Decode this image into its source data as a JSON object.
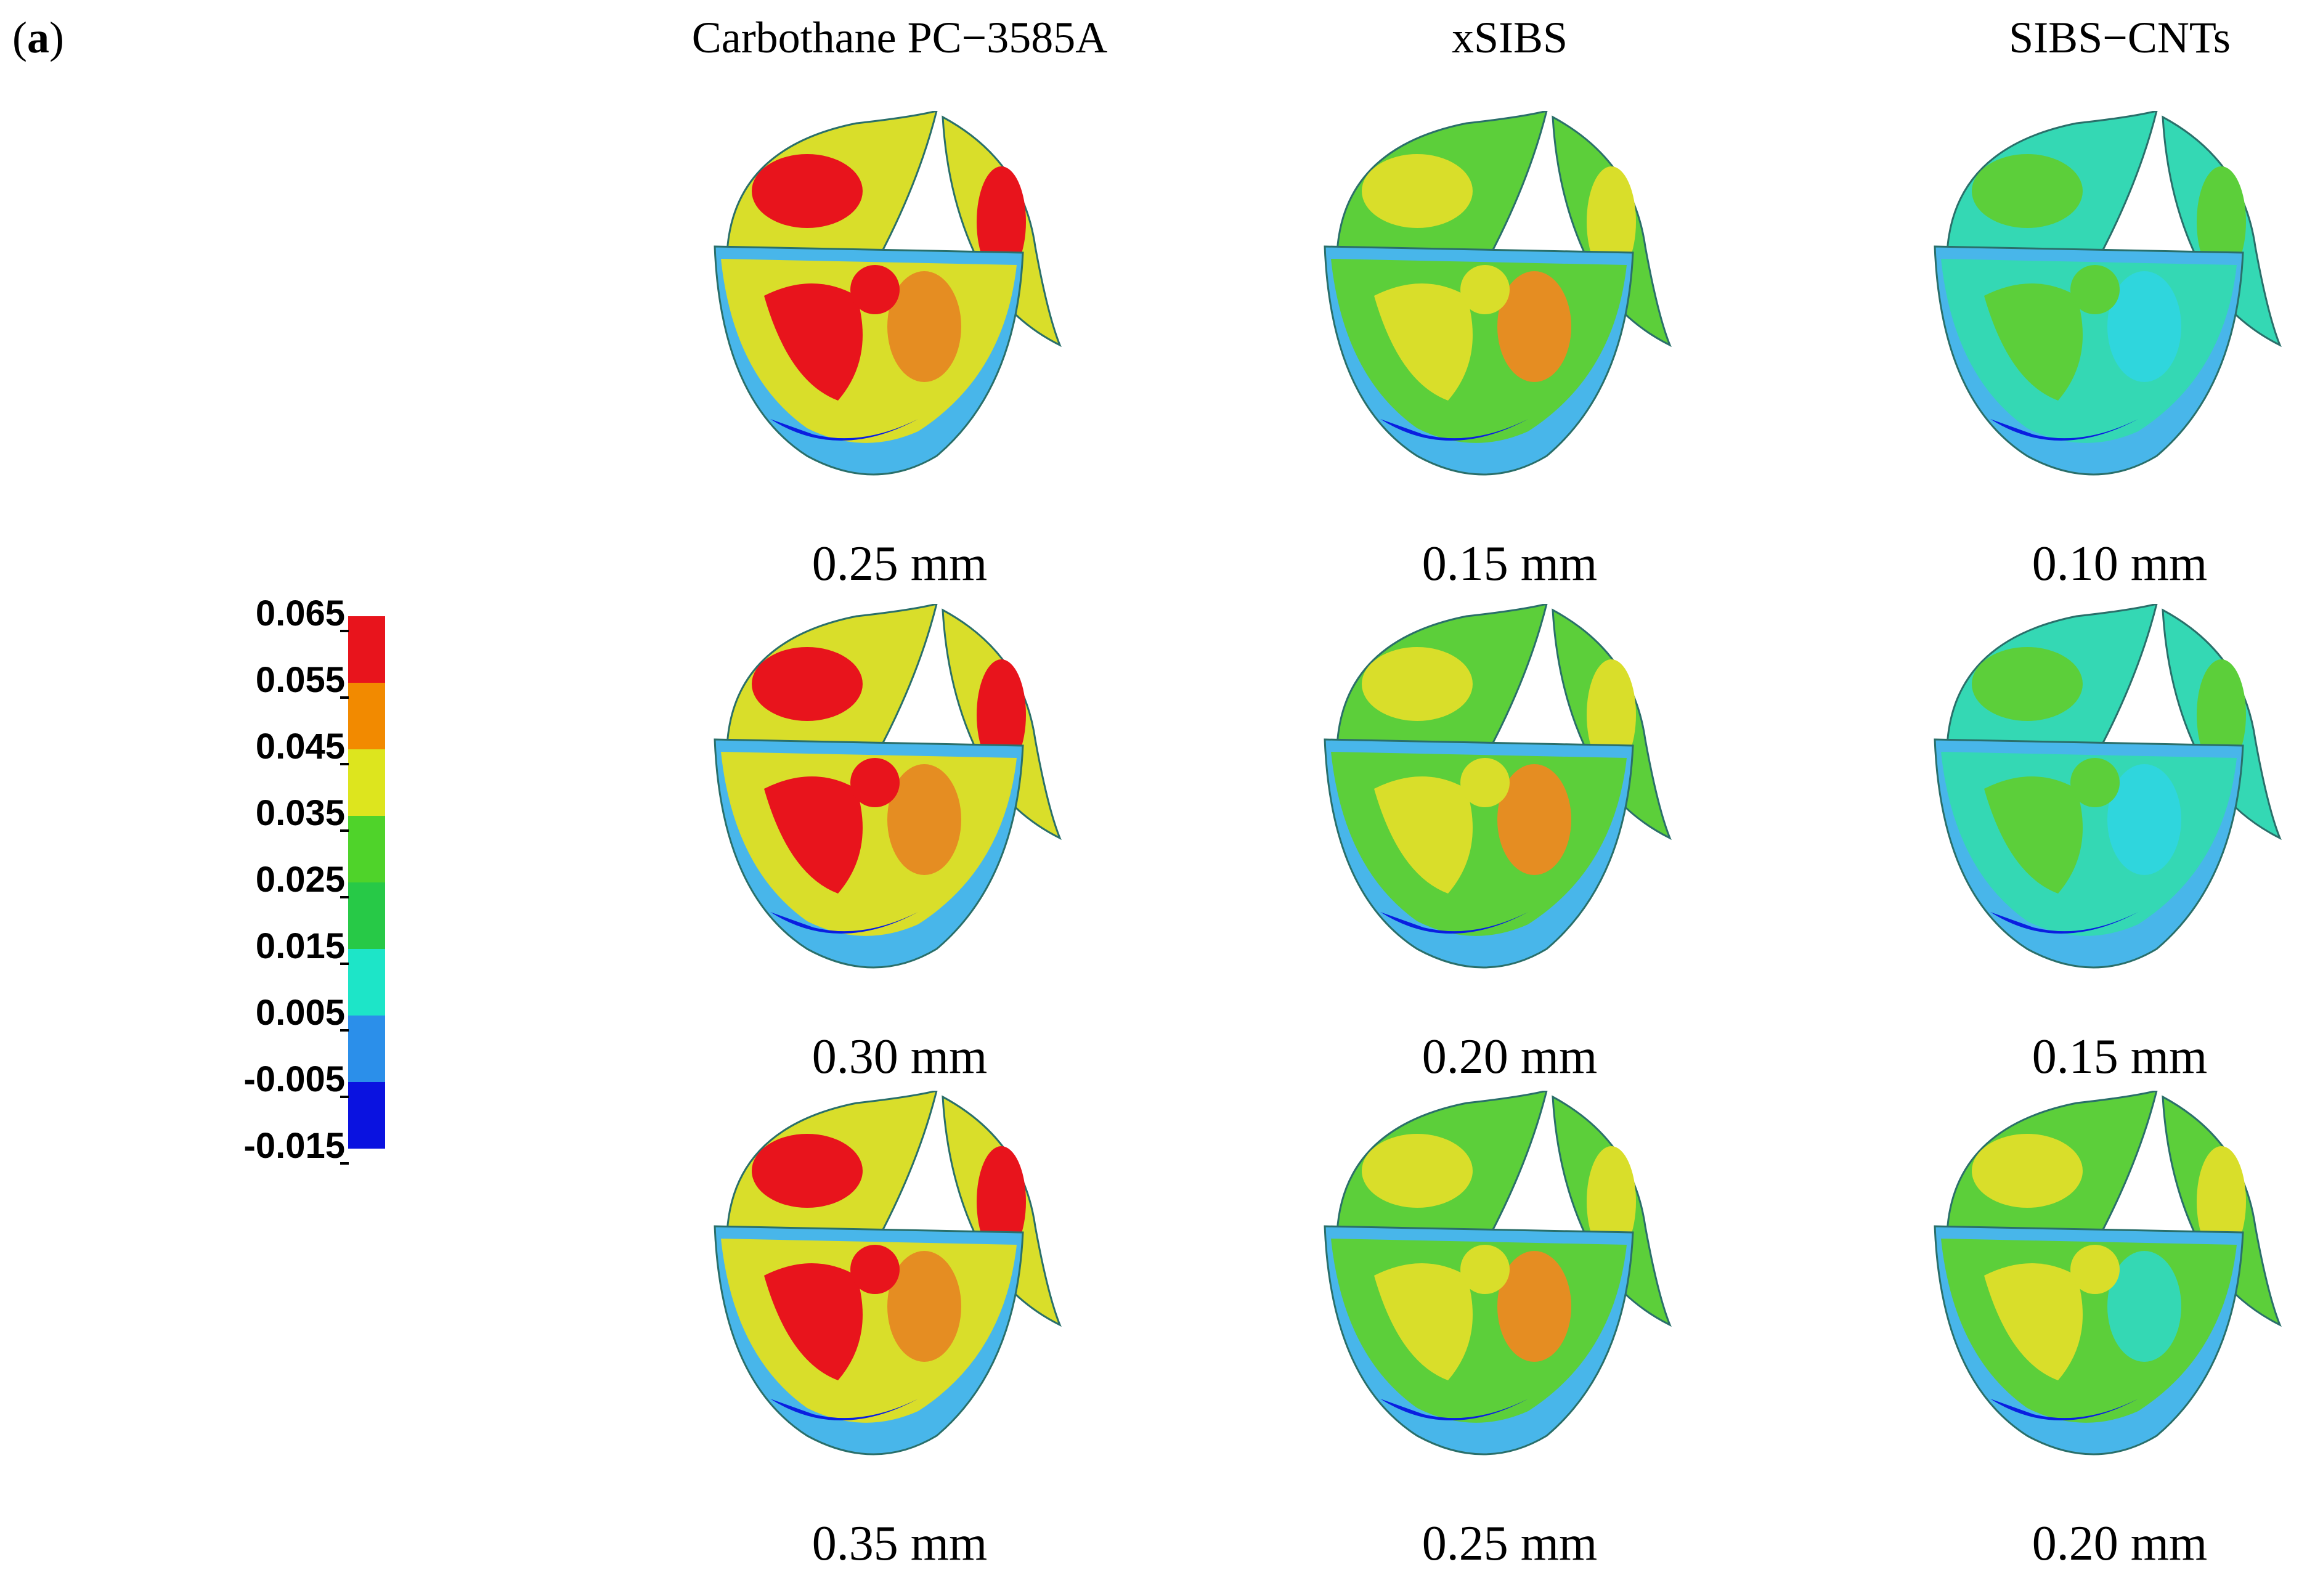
{
  "panel": {
    "label_open": "(",
    "label_letter": "a",
    "label_close": ")"
  },
  "columns": [
    {
      "title": "Carbothane PC−3585A"
    },
    {
      "title": "xSIBS"
    },
    {
      "title": "SIBS−CNTs"
    }
  ],
  "rows": [
    {
      "thicknesses": [
        "0.25 mm",
        "0.15 mm",
        "0.10 mm"
      ]
    },
    {
      "thicknesses": [
        "0.30 mm",
        "0.20 mm",
        "0.15 mm"
      ]
    },
    {
      "thicknesses": [
        "0.35 mm",
        "0.25 mm",
        "0.20 mm"
      ]
    }
  ],
  "legend": {
    "ticks": [
      "0.065",
      "0.055",
      "0.045",
      "0.035",
      "0.025",
      "0.015",
      "0.005",
      "-0.005",
      "-0.015"
    ],
    "band_colors": [
      "#e8141c",
      "#f28a00",
      "#dde51e",
      "#4fd32a",
      "#27c947",
      "#1de5c8",
      "#2b8fea",
      "#0a12e0"
    ]
  },
  "colors": {
    "red": "#e8141c",
    "orange": "#e58d22",
    "yellow": "#d9de2a",
    "green": "#5ccf3a",
    "teal": "#34d8b4",
    "cyan": "#2fd6dd",
    "lightblue": "#48b6ea",
    "blue": "#0a1ee0"
  },
  "valve_palettes": [
    [
      {
        "base": "#d9de2a",
        "patch1": "#e8141c",
        "patch2": "#e58d22",
        "lower": "#48b6ea"
      },
      {
        "base": "#5ccf3a",
        "patch1": "#d9de2a",
        "patch2": "#e58d22",
        "lower": "#48b6ea"
      },
      {
        "base": "#34d8b4",
        "patch1": "#5ccf3a",
        "patch2": "#2fd6dd",
        "lower": "#48b6ea"
      }
    ],
    [
      {
        "base": "#d9de2a",
        "patch1": "#e8141c",
        "patch2": "#e58d22",
        "lower": "#48b6ea"
      },
      {
        "base": "#5ccf3a",
        "patch1": "#d9de2a",
        "patch2": "#e58d22",
        "lower": "#48b6ea"
      },
      {
        "base": "#34d8b4",
        "patch1": "#5ccf3a",
        "patch2": "#2fd6dd",
        "lower": "#48b6ea"
      }
    ],
    [
      {
        "base": "#d9de2a",
        "patch1": "#e8141c",
        "patch2": "#e58d22",
        "lower": "#48b6ea"
      },
      {
        "base": "#5ccf3a",
        "patch1": "#d9de2a",
        "patch2": "#e58d22",
        "lower": "#48b6ea"
      },
      {
        "base": "#5ccf3a",
        "patch1": "#d9de2a",
        "patch2": "#34d8b4",
        "lower": "#48b6ea"
      }
    ]
  ]
}
